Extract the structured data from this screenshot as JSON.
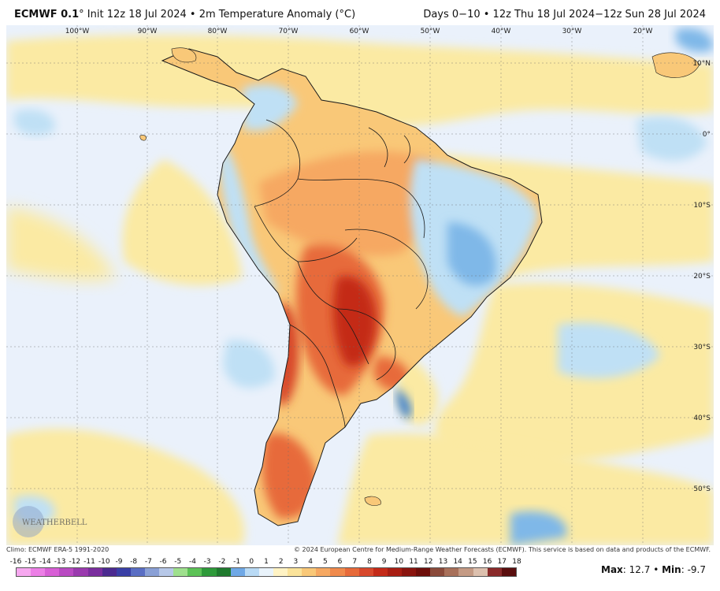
{
  "header": {
    "model": "ECMWF 0.1",
    "degree": "°",
    "init": "Init 12z 18 Jul 2024",
    "separator": "•",
    "product": "2m Temperature Anomaly (°C)",
    "valid": "Days 0−10 • 12z Thu 18 Jul 2024−12z Sun 28 Jul 2024"
  },
  "map": {
    "lon_labels": [
      "100°W",
      "90°W",
      "80°W",
      "70°W",
      "60°W",
      "50°W",
      "40°W",
      "30°W",
      "20°W"
    ],
    "lat_labels": [
      "10°N",
      "0°",
      "10°S",
      "20°S",
      "30°S",
      "40°S",
      "50°S"
    ],
    "logo_text": "WEATHERBELL",
    "colors": {
      "ocean_base": "#eaf1fb",
      "warm_light": "#fbeaa3",
      "warm_mid": "#f6b56e",
      "warm_strong": "#ea7a44",
      "warm_max": "#c42a18",
      "cool_light": "#bfe0f5",
      "cool_mid": "#7fb8e8",
      "cool_strong": "#3b7fd0",
      "border": "#1a1a1a"
    }
  },
  "footer": {
    "climo": "Climo: ECMWF ERA-5 1991-2020",
    "copyright": "© 2024 European Centre for Medium-Range Weather Forecasts (ECMWF). This service is based on data and products of the ECMWF."
  },
  "colorbar": {
    "ticks": [
      "-16",
      "-15",
      "-14",
      "-13",
      "-12",
      "-11",
      "-10",
      "-9",
      "-8",
      "-7",
      "-6",
      "-5",
      "-4",
      "-3",
      "-2",
      "-1",
      "0",
      "1",
      "2",
      "3",
      "4",
      "5",
      "6",
      "7",
      "8",
      "9",
      "10",
      "11",
      "12",
      "13",
      "14",
      "15",
      "16",
      "17",
      "18"
    ],
    "colors": [
      "#f7a8f0",
      "#ec7fe6",
      "#d85fd6",
      "#b94ac2",
      "#9a3aae",
      "#7a2e9e",
      "#4b2a90",
      "#3a3fa6",
      "#5a6ec4",
      "#8aa0d6",
      "#b7c8e8",
      "#9fe08e",
      "#5cc256",
      "#2e9a3a",
      "#1f7a2e",
      "#6fa8e6",
      "#b9daf5",
      "#e9f3fb",
      "#fff3c4",
      "#fbe39a",
      "#f9c878",
      "#f6a862",
      "#f08a4c",
      "#e76a3a",
      "#d8482c",
      "#c42a18",
      "#a81d12",
      "#8a140e",
      "#6e0e0a",
      "#8a4a3a",
      "#a8705a",
      "#c49a84",
      "#dcc0ae",
      "#8a2a2a",
      "#5a0e0e"
    ]
  },
  "stats": {
    "max_label": "Max",
    "max_value": "12.7",
    "min_label": "Min",
    "min_value": "-9.7",
    "sep": "•"
  }
}
